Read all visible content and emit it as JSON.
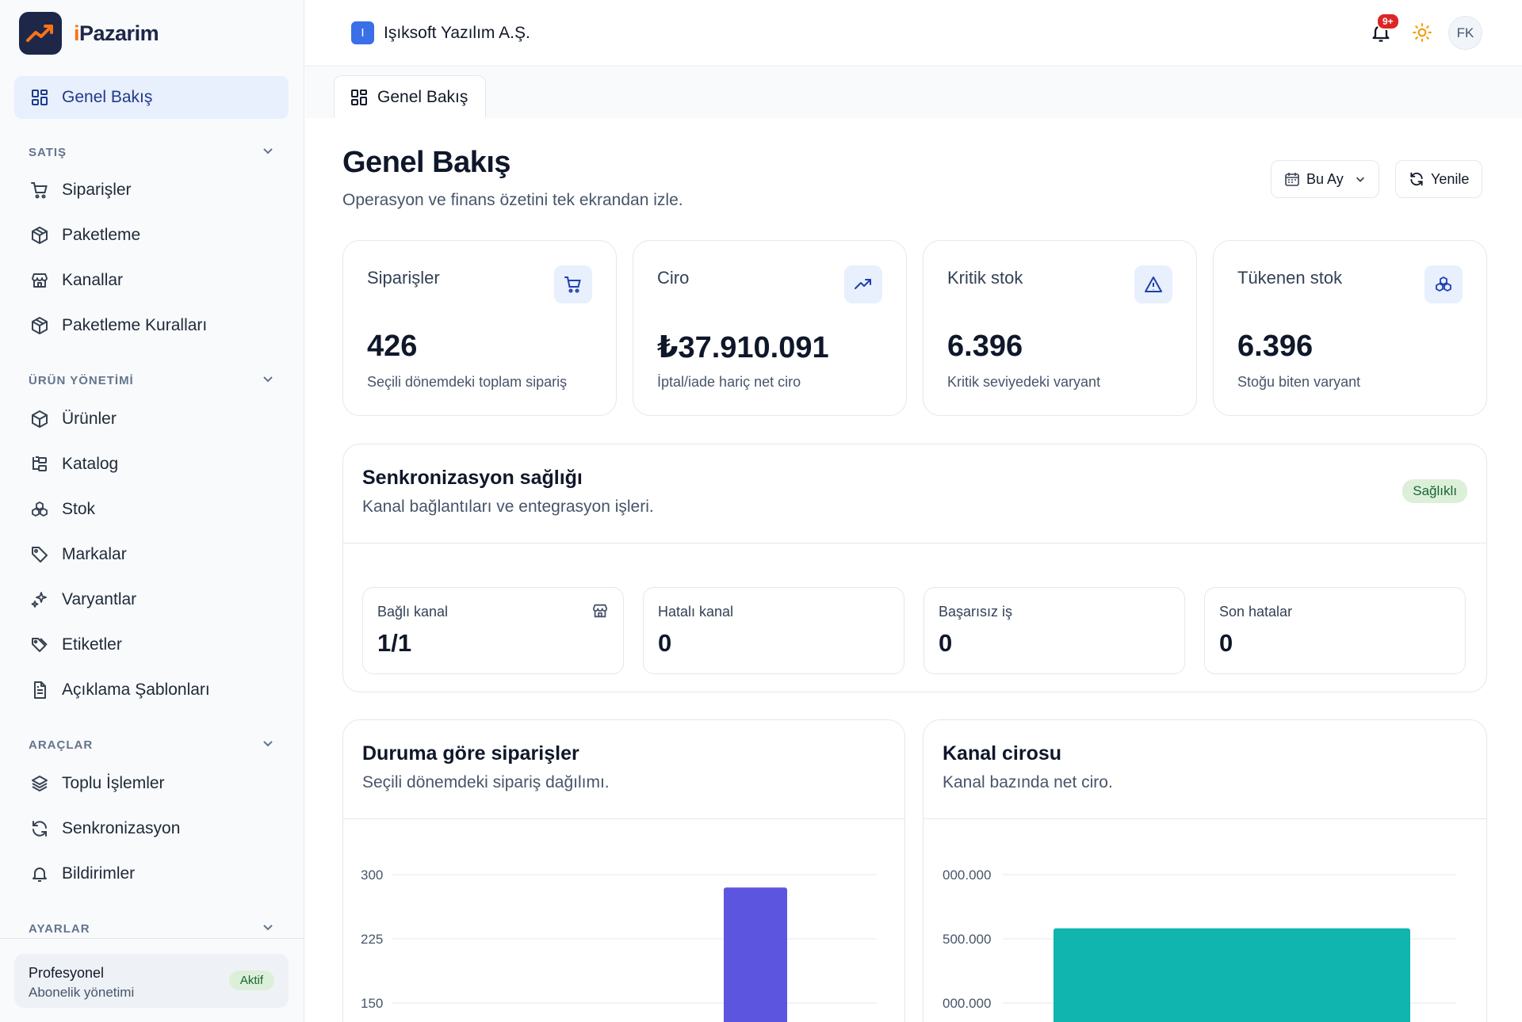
{
  "app": {
    "brand_prefix": "i",
    "brand_rest": "Pazarim"
  },
  "sidebar": {
    "overview": "Genel Bakış",
    "sections": [
      {
        "label": "SATIŞ",
        "items": [
          "Siparişler",
          "Paketleme",
          "Kanallar",
          "Paketleme Kuralları"
        ]
      },
      {
        "label": "ÜRÜN YÖNETİMİ",
        "items": [
          "Ürünler",
          "Katalog",
          "Stok",
          "Markalar",
          "Varyantlar",
          "Etiketler",
          "Açıklama Şablonları"
        ]
      },
      {
        "label": "ARAÇLAR",
        "items": [
          "Toplu İşlemler",
          "Senkronizasyon",
          "Bildirimler"
        ]
      },
      {
        "label": "AYARLAR",
        "items": []
      }
    ],
    "plan": {
      "name": "Profesyonel",
      "sub": "Abonelik yönetimi",
      "badge": "Aktif"
    }
  },
  "topbar": {
    "company_initial": "I",
    "company_name": "Işıksoft Yazılım A.Ş.",
    "notification_badge": "9+",
    "avatar_initials": "FK"
  },
  "tab": {
    "label": "Genel Bakış"
  },
  "page": {
    "title": "Genel Bakış",
    "subtitle": "Operasyon ve finans özetini tek ekrandan izle.",
    "period_label": "Bu Ay",
    "refresh_label": "Yenile"
  },
  "kpis": [
    {
      "label": "Siparişler",
      "value": "426",
      "sub": "Seçili dönemdeki toplam sipariş",
      "icon": "cart-icon"
    },
    {
      "label": "Ciro",
      "value": "₺37.910.091",
      "sub": "İptal/iade hariç net ciro",
      "icon": "trending-up-icon"
    },
    {
      "label": "Kritik stok",
      "value": "6.396",
      "sub": "Kritik seviyedeki varyant",
      "icon": "warning-icon"
    },
    {
      "label": "Tükenen stok",
      "value": "6.396",
      "sub": "Stoğu biten varyant",
      "icon": "boxes-icon"
    }
  ],
  "sync": {
    "title": "Senkronizasyon sağlığı",
    "subtitle": "Kanal bağlantıları ve entegrasyon işleri.",
    "badge": "Sağlıklı",
    "stats": [
      {
        "label": "Bağlı kanal",
        "value": "1/1"
      },
      {
        "label": "Hatalı kanal",
        "value": "0"
      },
      {
        "label": "Başarısız iş",
        "value": "0"
      },
      {
        "label": "Son hatalar",
        "value": "0"
      }
    ]
  },
  "charts": {
    "orders": {
      "title": "Duruma göre siparişler",
      "subtitle": "Seçili dönemdeki sipariş dağılımı."
    },
    "revenue": {
      "title": "Kanal cirosu",
      "subtitle": "Kanal bazında net ciro."
    }
  },
  "chart_data": [
    {
      "type": "bar",
      "title": "Duruma göre siparişler",
      "y_ticks": [
        "300",
        "225",
        "150"
      ],
      "y_tick_values": [
        300,
        225,
        150
      ],
      "bar_color": "#5b55e0",
      "bars": [
        {
          "value": 285
        }
      ],
      "grid": true
    },
    {
      "type": "bar",
      "title": "Kanal cirosu",
      "y_ticks": [
        "000.000",
        "500.000",
        "000.000"
      ],
      "y_tick_values": [
        40000000,
        37500000,
        35000000
      ],
      "bar_color": "#0fb5ae",
      "bars": [
        {
          "value": 37910091
        }
      ],
      "grid": true
    }
  ]
}
